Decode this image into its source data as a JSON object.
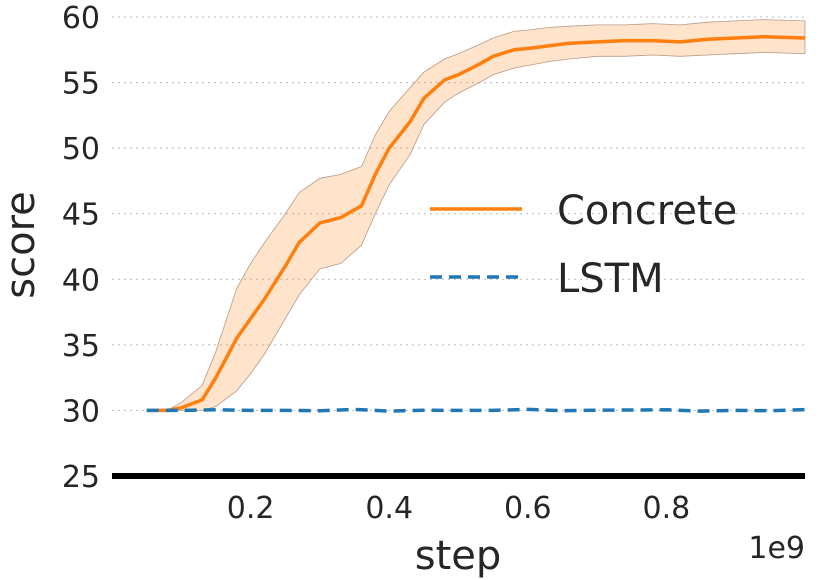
{
  "chart_data": {
    "type": "line",
    "title": "",
    "xlabel": "step",
    "ylabel": "score",
    "x_offset_label": "1e9",
    "xlim": [
      0,
      1.0
    ],
    "ylim": [
      25,
      60
    ],
    "x_ticks": [
      0.2,
      0.4,
      0.6,
      0.8
    ],
    "x_tick_labels": [
      "0.2",
      "0.4",
      "0.6",
      "0.8"
    ],
    "y_ticks": [
      25,
      30,
      35,
      40,
      45,
      50,
      55,
      60
    ],
    "y_tick_labels": [
      "25",
      "30",
      "35",
      "40",
      "45",
      "50",
      "55",
      "60"
    ],
    "grid": "horizontal-dotted",
    "legend_position": "center-right",
    "series": [
      {
        "name": "Concrete",
        "color": "#ff7f0e",
        "style": "solid",
        "x": [
          0.05,
          0.08,
          0.1,
          0.13,
          0.15,
          0.18,
          0.2,
          0.22,
          0.25,
          0.27,
          0.3,
          0.33,
          0.36,
          0.38,
          0.4,
          0.43,
          0.45,
          0.48,
          0.5,
          0.53,
          0.55,
          0.58,
          0.6,
          0.63,
          0.66,
          0.7,
          0.74,
          0.78,
          0.82,
          0.86,
          0.9,
          0.94,
          1.0
        ],
        "y": [
          30,
          30,
          30.2,
          30.8,
          32.5,
          35.5,
          37,
          38.5,
          41,
          42.8,
          44.3,
          44.7,
          45.6,
          48,
          50,
          52,
          53.8,
          55.2,
          55.6,
          56.4,
          57,
          57.5,
          57.6,
          57.8,
          58,
          58.1,
          58.2,
          58.2,
          58.1,
          58.3,
          58.4,
          58.5,
          58.4
        ],
        "lower": [
          30,
          30,
          30,
          30,
          30.3,
          31.5,
          32.8,
          34.3,
          37,
          38.8,
          40.8,
          41.2,
          42.6,
          45,
          47.2,
          49.5,
          51.8,
          53.5,
          54.2,
          55,
          55.6,
          56.1,
          56.3,
          56.6,
          56.8,
          57,
          57,
          57.1,
          57,
          57.1,
          57.2,
          57.3,
          57.2
        ],
        "upper": [
          30,
          30,
          30.6,
          31.9,
          34.5,
          39.3,
          41.2,
          42.8,
          45,
          46.6,
          47.7,
          48,
          48.6,
          51,
          52.8,
          54.6,
          55.8,
          56.8,
          57.2,
          57.9,
          58.4,
          58.9,
          59,
          59.2,
          59.3,
          59.4,
          59.4,
          59.5,
          59.4,
          59.6,
          59.7,
          59.8,
          59.7
        ]
      },
      {
        "name": "LSTM",
        "color": "#1f77b4",
        "style": "dashed",
        "x": [
          0.05,
          0.1,
          0.15,
          0.2,
          0.25,
          0.3,
          0.35,
          0.4,
          0.45,
          0.5,
          0.55,
          0.6,
          0.65,
          0.7,
          0.75,
          0.8,
          0.85,
          0.9,
          0.95,
          1.0
        ],
        "y": [
          30,
          30,
          30.05,
          30,
          30,
          29.98,
          30.08,
          29.95,
          30.02,
          30,
          30,
          30.08,
          29.98,
          30.02,
          30.03,
          30.05,
          29.95,
          30,
          29.98,
          30.06
        ]
      }
    ]
  }
}
